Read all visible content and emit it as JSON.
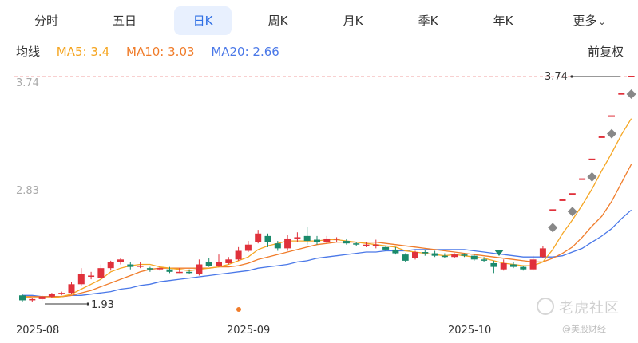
{
  "tabs": [
    {
      "label": "分时"
    },
    {
      "label": "五日"
    },
    {
      "label": "日K",
      "active": true
    },
    {
      "label": "周K"
    },
    {
      "label": "月K"
    },
    {
      "label": "季K"
    },
    {
      "label": "年K"
    },
    {
      "label": "更多"
    }
  ],
  "legend": {
    "label": "均线",
    "ma5": "MA5: 3.4",
    "ma10": "MA10: 3.03",
    "ma20": "MA20: 2.66",
    "colors": {
      "ma5": "#f5a623",
      "ma10": "#f07c2a",
      "ma20": "#4a78e8"
    }
  },
  "adjust_label": "前复权",
  "watermark": "老虎社区",
  "watermark_sub": "@美股财经",
  "chart_data": {
    "type": "candlestick",
    "y_ticks": [
      "3.74",
      "2.83"
    ],
    "x_ticks": [
      "2025-08",
      "2025-09",
      "2025-10"
    ],
    "price_range": [
      1.77,
      3.78
    ],
    "high_marker": "3.74",
    "low_marker": "1.93",
    "up_color": "#e0313b",
    "down_color": "#1a8a6b",
    "candles": [
      [
        1.97,
        1.93,
        1.98,
        1.92
      ],
      [
        1.93,
        1.94,
        1.95,
        1.92
      ],
      [
        1.94,
        1.96,
        1.97,
        1.93
      ],
      [
        1.96,
        1.98,
        1.99,
        1.95
      ],
      [
        1.98,
        1.99,
        2.0,
        1.97
      ],
      [
        1.99,
        2.06,
        2.08,
        1.98
      ],
      [
        2.06,
        2.14,
        2.19,
        2.05
      ],
      [
        2.12,
        2.13,
        2.16,
        2.1
      ],
      [
        2.11,
        2.19,
        2.22,
        2.1
      ],
      [
        2.19,
        2.24,
        2.25,
        2.17
      ],
      [
        2.24,
        2.26,
        2.27,
        2.22
      ],
      [
        2.22,
        2.2,
        2.24,
        2.18
      ],
      [
        2.2,
        2.21,
        2.24,
        2.19
      ],
      [
        2.19,
        2.18,
        2.2,
        2.16
      ],
      [
        2.18,
        2.19,
        2.2,
        2.17
      ],
      [
        2.18,
        2.16,
        2.2,
        2.15
      ],
      [
        2.16,
        2.16,
        2.19,
        2.15
      ],
      [
        2.16,
        2.15,
        2.18,
        2.14
      ],
      [
        2.14,
        2.22,
        2.26,
        2.13
      ],
      [
        2.24,
        2.21,
        2.27,
        2.2
      ],
      [
        2.21,
        2.24,
        2.3,
        2.2
      ],
      [
        2.23,
        2.26,
        2.28,
        2.22
      ],
      [
        2.26,
        2.33,
        2.36,
        2.25
      ],
      [
        2.33,
        2.38,
        2.41,
        2.32
      ],
      [
        2.4,
        2.47,
        2.5,
        2.39
      ],
      [
        2.45,
        2.4,
        2.47,
        2.36
      ],
      [
        2.39,
        2.35,
        2.41,
        2.33
      ],
      [
        2.35,
        2.43,
        2.46,
        2.33
      ],
      [
        2.43,
        2.44,
        2.48,
        2.4
      ],
      [
        2.45,
        2.41,
        2.52,
        2.38
      ],
      [
        2.42,
        2.4,
        2.45,
        2.38
      ],
      [
        2.4,
        2.43,
        2.45,
        2.39
      ],
      [
        2.43,
        2.43,
        2.44,
        2.4
      ],
      [
        2.41,
        2.39,
        2.43,
        2.38
      ],
      [
        2.39,
        2.38,
        2.4,
        2.37
      ],
      [
        2.38,
        2.38,
        2.4,
        2.36
      ],
      [
        2.38,
        2.38,
        2.42,
        2.35
      ],
      [
        2.36,
        2.34,
        2.37,
        2.33
      ],
      [
        2.34,
        2.31,
        2.36,
        2.3
      ],
      [
        2.3,
        2.25,
        2.31,
        2.24
      ],
      [
        2.27,
        2.32,
        2.33,
        2.26
      ],
      [
        2.32,
        2.31,
        2.34,
        2.29
      ],
      [
        2.31,
        2.29,
        2.33,
        2.28
      ],
      [
        2.29,
        2.28,
        2.31,
        2.27
      ],
      [
        2.28,
        2.3,
        2.31,
        2.27
      ],
      [
        2.3,
        2.29,
        2.31,
        2.28
      ],
      [
        2.29,
        2.26,
        2.3,
        2.25
      ],
      [
        2.26,
        2.25,
        2.28,
        2.24
      ],
      [
        2.23,
        2.2,
        2.25,
        2.15
      ],
      [
        2.18,
        2.23,
        2.26,
        2.17
      ],
      [
        2.22,
        2.2,
        2.24,
        2.19
      ],
      [
        2.2,
        2.18,
        2.21,
        2.17
      ],
      [
        2.18,
        2.26,
        2.29,
        2.17
      ],
      [
        2.28,
        2.35,
        2.37,
        2.27
      ],
      [
        2.66,
        2.66,
        2.66,
        2.66
      ],
      [
        2.74,
        2.74,
        2.74,
        2.74
      ],
      [
        2.79,
        2.79,
        2.79,
        2.79
      ],
      [
        2.91,
        2.91,
        2.91,
        2.91
      ],
      [
        3.07,
        3.07,
        3.07,
        3.07
      ],
      [
        3.25,
        3.25,
        3.25,
        3.25
      ],
      [
        3.42,
        3.42,
        3.42,
        3.42
      ],
      [
        3.6,
        3.6,
        3.6,
        3.6
      ],
      [
        3.74,
        3.74,
        3.74,
        3.74
      ]
    ],
    "ma5": [
      1.96,
      1.95,
      1.95,
      1.95,
      1.96,
      1.98,
      2.02,
      2.06,
      2.1,
      2.16,
      2.19,
      2.21,
      2.22,
      2.22,
      2.2,
      2.19,
      2.18,
      2.17,
      2.18,
      2.19,
      2.2,
      2.22,
      2.25,
      2.28,
      2.34,
      2.37,
      2.39,
      2.41,
      2.41,
      2.41,
      2.41,
      2.42,
      2.42,
      2.41,
      2.4,
      2.39,
      2.38,
      2.37,
      2.36,
      2.33,
      2.32,
      2.31,
      2.3,
      2.29,
      2.3,
      2.29,
      2.28,
      2.27,
      2.25,
      2.23,
      2.22,
      2.21,
      2.21,
      2.24,
      2.34,
      2.47,
      2.58,
      2.7,
      2.83,
      2.98,
      3.12,
      3.27,
      3.4
    ],
    "ma10": [
      1.96,
      1.96,
      1.96,
      1.96,
      1.96,
      1.97,
      1.99,
      2.01,
      2.04,
      2.07,
      2.1,
      2.13,
      2.16,
      2.18,
      2.19,
      2.19,
      2.19,
      2.19,
      2.19,
      2.19,
      2.2,
      2.2,
      2.21,
      2.23,
      2.26,
      2.28,
      2.3,
      2.32,
      2.34,
      2.36,
      2.38,
      2.39,
      2.4,
      2.4,
      2.4,
      2.4,
      2.4,
      2.39,
      2.38,
      2.37,
      2.36,
      2.35,
      2.34,
      2.33,
      2.32,
      2.31,
      2.3,
      2.29,
      2.28,
      2.27,
      2.26,
      2.25,
      2.24,
      2.24,
      2.27,
      2.31,
      2.36,
      2.44,
      2.53,
      2.61,
      2.73,
      2.88,
      3.03
    ],
    "ma20": [
      1.97,
      1.97,
      1.96,
      1.96,
      1.96,
      1.97,
      1.97,
      1.98,
      1.99,
      2.0,
      2.02,
      2.03,
      2.05,
      2.06,
      2.08,
      2.09,
      2.1,
      2.11,
      2.12,
      2.13,
      2.14,
      2.15,
      2.16,
      2.17,
      2.19,
      2.2,
      2.21,
      2.22,
      2.24,
      2.25,
      2.27,
      2.28,
      2.29,
      2.3,
      2.31,
      2.32,
      2.32,
      2.33,
      2.33,
      2.33,
      2.34,
      2.34,
      2.34,
      2.34,
      2.34,
      2.34,
      2.33,
      2.32,
      2.31,
      2.3,
      2.29,
      2.28,
      2.28,
      2.28,
      2.28,
      2.29,
      2.32,
      2.35,
      2.4,
      2.45,
      2.51,
      2.59,
      2.66
    ]
  }
}
